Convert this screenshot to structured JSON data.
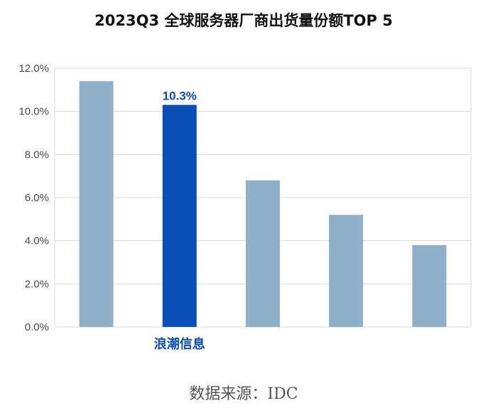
{
  "chart_data": {
    "type": "bar",
    "title": "2023Q3 全球服务器厂商出货量份额TOP 5",
    "categories": [
      "",
      "浪潮信息",
      "",
      "",
      ""
    ],
    "values": [
      11.4,
      10.3,
      6.8,
      5.2,
      3.8
    ],
    "unit": "%",
    "data_labels": [
      "",
      "10.3%",
      "",
      "",
      ""
    ],
    "highlight_index": 1,
    "ylim": [
      0,
      12
    ],
    "yticks": [
      0,
      2,
      4,
      6,
      8,
      10,
      12
    ],
    "ytick_labels": [
      "0.0%",
      "2.0%",
      "4.0%",
      "6.0%",
      "8.0%",
      "10.0%",
      "12.0%"
    ],
    "grid": true,
    "colors": {
      "bar": "#8fb0c8",
      "highlight": "#0a4fb8",
      "grid": "#d9d9d9",
      "label": "#0a4fb0"
    },
    "source": "数据来源：IDC"
  }
}
